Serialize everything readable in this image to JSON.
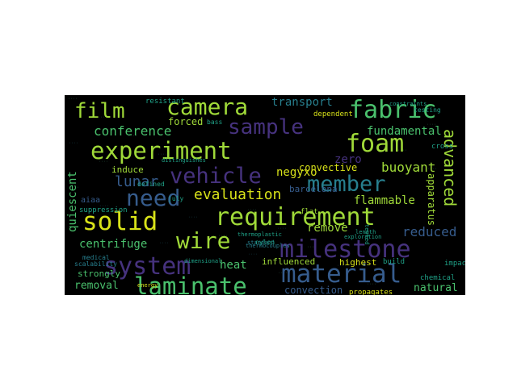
{
  "figure": {
    "background": "#000000",
    "page_background": "#ffffff",
    "palette": {
      "yellow": "#d8e219",
      "lime": "#a0da39",
      "green": "#4ac16d",
      "teal": "#1fa187",
      "cyan": "#277f8e",
      "blue": "#365c8d",
      "indigo": "#46327e",
      "purple": "#440154"
    }
  },
  "words": [
    {
      "text": "film",
      "weight": 0.72,
      "color": "lime"
    },
    {
      "text": "camera",
      "weight": 0.82,
      "color": "lime"
    },
    {
      "text": "fabric",
      "weight": 0.85,
      "color": "green"
    },
    {
      "text": "sample",
      "weight": 0.78,
      "color": "indigo"
    },
    {
      "text": "experiment",
      "weight": 0.9,
      "color": "lime"
    },
    {
      "text": "foam",
      "weight": 0.75,
      "color": "lime"
    },
    {
      "text": "vehicle",
      "weight": 0.88,
      "color": "indigo"
    },
    {
      "text": "member",
      "weight": 0.82,
      "color": "cyan"
    },
    {
      "text": "need",
      "weight": 0.78,
      "color": "blue"
    },
    {
      "text": "solid",
      "weight": 0.85,
      "color": "yellow"
    },
    {
      "text": "requirement",
      "weight": 1.0,
      "color": "lime"
    },
    {
      "text": "milestone",
      "weight": 0.9,
      "color": "indigo"
    },
    {
      "text": "wire",
      "weight": 0.82,
      "color": "lime"
    },
    {
      "text": "system",
      "weight": 0.9,
      "color": "indigo"
    },
    {
      "text": "material",
      "weight": 0.9,
      "color": "blue"
    },
    {
      "text": "laminate",
      "weight": 0.92,
      "color": "green"
    },
    {
      "text": "evaluation",
      "weight": 0.55,
      "color": "yellow"
    },
    {
      "text": "advanced",
      "weight": 0.5,
      "color": "lime"
    },
    {
      "text": "lunar",
      "weight": 0.45,
      "color": "blue"
    },
    {
      "text": "conference",
      "weight": 0.42,
      "color": "green"
    },
    {
      "text": "fundamental",
      "weight": 0.38,
      "color": "green"
    },
    {
      "text": "transport",
      "weight": 0.35,
      "color": "cyan"
    },
    {
      "text": "centrifuge",
      "weight": 0.35,
      "color": "green"
    },
    {
      "text": "reduced",
      "weight": 0.4,
      "color": "blue"
    },
    {
      "text": "remove",
      "weight": 0.34,
      "color": "lime"
    },
    {
      "text": "heat",
      "weight": 0.36,
      "color": "green"
    },
    {
      "text": "buoyant",
      "weight": 0.36,
      "color": "lime"
    },
    {
      "text": "flammable",
      "weight": 0.34,
      "color": "lime"
    },
    {
      "text": "quiescent",
      "weight": 0.34,
      "color": "green"
    },
    {
      "text": "forced",
      "weight": 0.3,
      "color": "lime"
    },
    {
      "text": "negyxo",
      "weight": 0.3,
      "color": "yellow"
    },
    {
      "text": "zero",
      "weight": 0.3,
      "color": "indigo"
    },
    {
      "text": "convective",
      "weight": 0.3,
      "color": "yellow"
    },
    {
      "text": "induce",
      "weight": 0.28,
      "color": "lime"
    },
    {
      "text": "influenced",
      "weight": 0.28,
      "color": "lime"
    },
    {
      "text": "highest",
      "weight": 0.28,
      "color": "yellow"
    },
    {
      "text": "removal",
      "weight": 0.3,
      "color": "green"
    },
    {
      "text": "convection",
      "weight": 0.3,
      "color": "blue"
    },
    {
      "text": "natural",
      "weight": 0.3,
      "color": "green"
    },
    {
      "text": "strongly",
      "weight": 0.24,
      "color": "green"
    },
    {
      "text": "apparatus",
      "weight": 0.24,
      "color": "lime"
    },
    {
      "text": "barcelona",
      "weight": 0.22,
      "color": "blue"
    },
    {
      "text": "suppression",
      "weight": 0.2,
      "color": "teal"
    },
    {
      "text": "aiaa",
      "weight": 0.22,
      "color": "blue"
    },
    {
      "text": "propagates",
      "weight": 0.2,
      "color": "yellow"
    },
    {
      "text": "dependent",
      "weight": 0.2,
      "color": "yellow"
    },
    {
      "text": "resistant",
      "weight": 0.18,
      "color": "teal"
    },
    {
      "text": "cross",
      "weight": 0.18,
      "color": "teal"
    },
    {
      "text": "chemical",
      "weight": 0.18,
      "color": "teal"
    },
    {
      "text": "impact",
      "weight": 0.18,
      "color": "teal"
    },
    {
      "text": "build",
      "weight": 0.18,
      "color": "teal"
    },
    {
      "text": "medical",
      "weight": 0.18,
      "color": "cyan"
    },
    {
      "text": "scalability",
      "weight": 0.16,
      "color": "cyan"
    },
    {
      "text": "defined",
      "weight": 0.16,
      "color": "teal"
    },
    {
      "text": "flat",
      "weight": 0.16,
      "color": "lime"
    },
    {
      "text": "july",
      "weight": 0.14,
      "color": "teal"
    },
    {
      "text": "bass",
      "weight": 0.14,
      "color": "teal"
    },
    {
      "text": "testing",
      "weight": 0.14,
      "color": "teal"
    },
    {
      "text": "standard",
      "weight": 0.14,
      "color": "cyan"
    },
    {
      "text": "nylon",
      "weight": 0.14,
      "color": "teal"
    },
    {
      "text": "thermoplastic",
      "weight": 0.12,
      "color": "teal"
    },
    {
      "text": "thermocouples",
      "weight": 0.12,
      "color": "cyan"
    },
    {
      "text": "dimensional",
      "weight": 0.12,
      "color": "teal"
    },
    {
      "text": "exploration",
      "weight": 0.12,
      "color": "teal"
    },
    {
      "text": "length",
      "weight": 0.12,
      "color": "teal"
    },
    {
      "text": "constraints",
      "weight": 0.12,
      "color": "teal"
    },
    {
      "text": "energy",
      "weight": 0.12,
      "color": "yellow"
    },
    {
      "text": "distinguishes",
      "weight": 0.1,
      "color": "teal"
    },
    {
      "text": "tested",
      "weight": 0.1,
      "color": "teal"
    }
  ]
}
